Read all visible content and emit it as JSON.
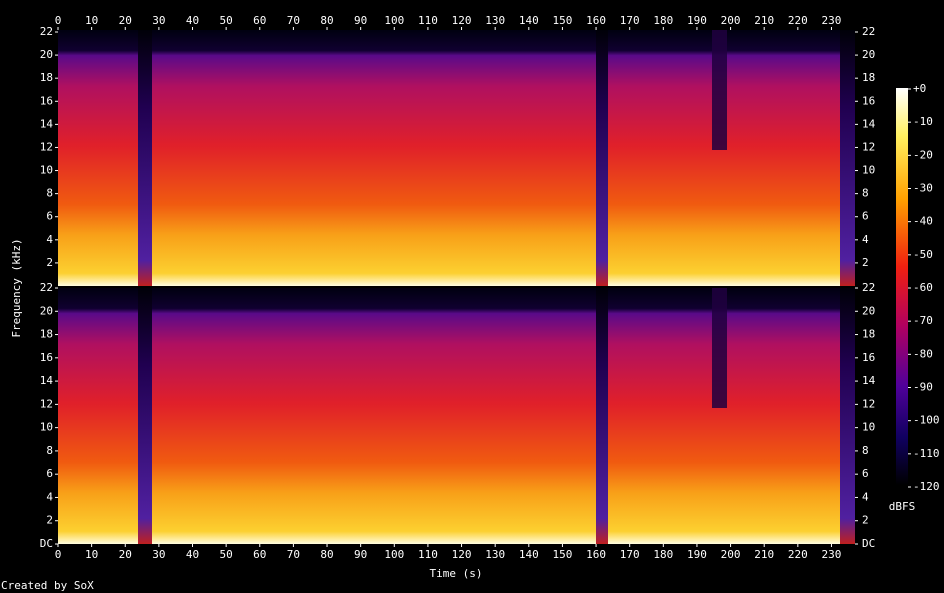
{
  "chart_data": {
    "type": "spectrogram",
    "xlabel": "Time (s)",
    "ylabel": "Frequency (kHz)",
    "xlim": [
      0,
      237
    ],
    "xticks": [
      0,
      10,
      20,
      30,
      40,
      50,
      60,
      70,
      80,
      90,
      100,
      110,
      120,
      130,
      140,
      150,
      160,
      170,
      180,
      190,
      200,
      210,
      220,
      230
    ],
    "ylim": [
      0,
      22
    ],
    "yticks": [
      {
        "value": 0,
        "label": "DC"
      },
      2,
      4,
      6,
      8,
      10,
      12,
      14,
      16,
      18,
      20,
      22
    ],
    "zlim": [
      -120,
      0
    ],
    "zticks": [
      {
        "value": 0,
        "label": "+0"
      },
      -10,
      -20,
      -30,
      -40,
      -50,
      -60,
      -70,
      -80,
      -90,
      -100,
      -110,
      -120
    ],
    "zlabel": "dBFS",
    "credit": "Created by SoX"
  }
}
